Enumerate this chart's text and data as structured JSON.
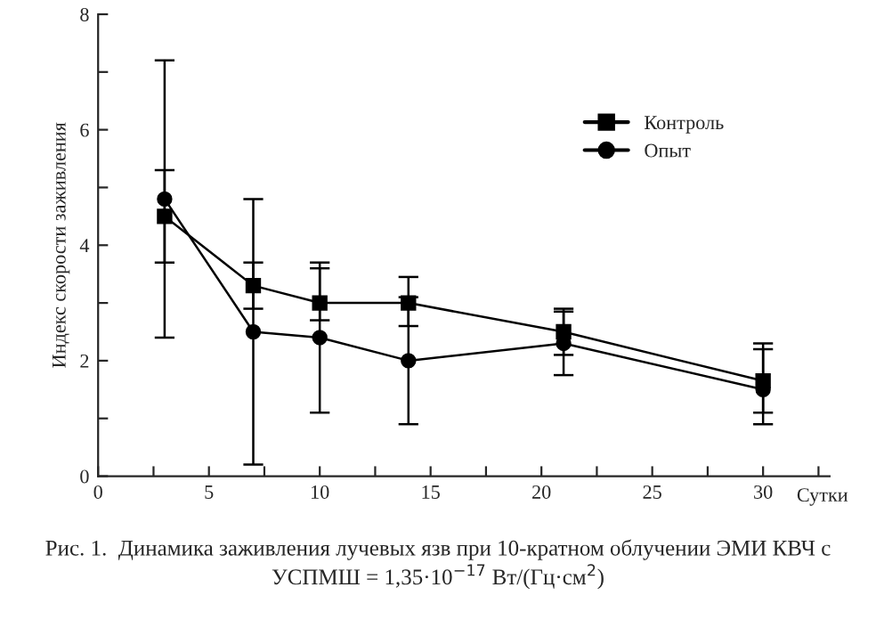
{
  "chart_data": {
    "type": "line",
    "x": [
      3,
      7,
      10,
      14,
      21,
      30
    ],
    "series": [
      {
        "name": "Контроль",
        "color": "#000000",
        "marker": "square",
        "values": [
          4.5,
          3.3,
          3.0,
          3.0,
          2.5,
          1.65
        ],
        "errors": [
          [
            3.7,
            5.3
          ],
          [
            2.9,
            3.7
          ],
          [
            2.7,
            3.6
          ],
          [
            2.6,
            3.45
          ],
          [
            2.1,
            2.9
          ],
          [
            1.1,
            2.2
          ]
        ]
      },
      {
        "name": "Опыт",
        "color": "#000000",
        "marker": "circle",
        "values": [
          4.8,
          2.5,
          2.4,
          2.0,
          2.3,
          1.5
        ],
        "errors": [
          [
            2.4,
            7.2
          ],
          [
            0.2,
            4.8
          ],
          [
            1.1,
            3.7
          ],
          [
            0.9,
            3.1
          ],
          [
            1.75,
            2.85
          ],
          [
            0.9,
            2.3
          ]
        ]
      }
    ],
    "xlabel": "Сутки",
    "ylabel": "Индекс скорости заживления",
    "xlim": [
      0,
      33
    ],
    "ylim": [
      0,
      8
    ],
    "xticks": [
      0,
      {
        "value": 2.5,
        "label": null
      },
      5,
      {
        "value": 7.5,
        "label": null
      },
      10,
      {
        "value": 12.5,
        "label": null
      },
      15,
      {
        "value": 17.5,
        "label": null
      },
      20,
      {
        "value": 22.5,
        "label": null
      },
      25,
      {
        "value": 27.5,
        "label": null
      },
      30,
      {
        "value": 32.5,
        "label": null
      }
    ],
    "yticks": [
      0,
      {
        "value": 1,
        "label": null
      },
      2,
      {
        "value": 3,
        "label": null
      },
      4,
      {
        "value": 5,
        "label": null
      },
      6,
      {
        "value": 7,
        "label": null
      },
      8
    ],
    "grid": false,
    "legend": "top right",
    "line_style": "solid",
    "annotations": [
      "Рис. 1.  Динамика заживления лучевых язв при 10-кратном облучении ЭМИ КВЧ с УСПМШ = 1,35·10$^{−17}$ Вт/(Гц·см$^{2}$)"
    ]
  }
}
